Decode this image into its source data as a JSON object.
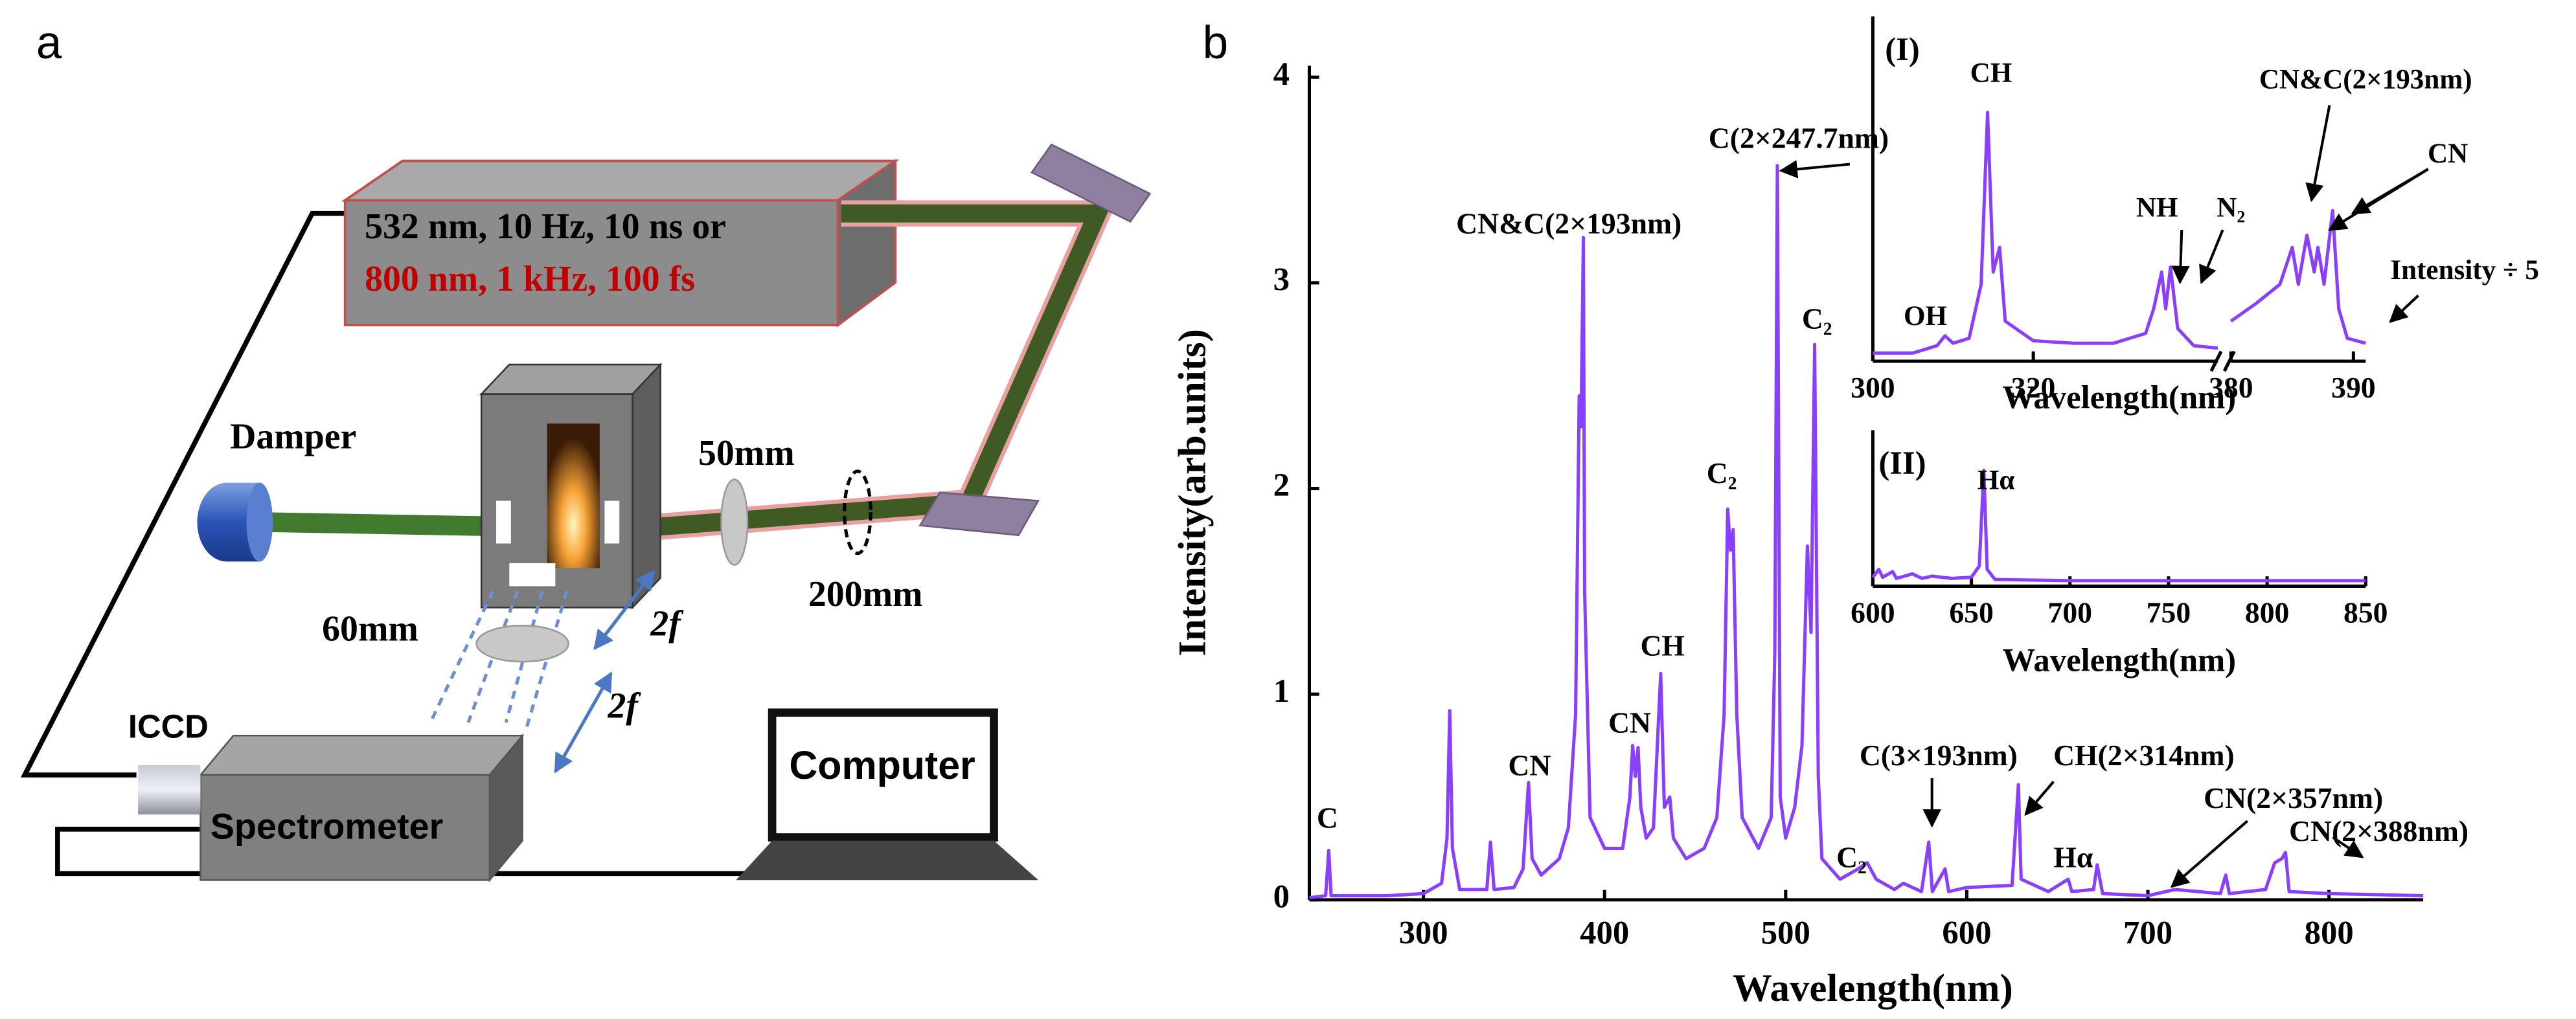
{
  "panel_a": {
    "label": "a",
    "laser_line_1": "532 nm, 10 Hz, 10 ns or",
    "laser_line_2": "800 nm, 1 kHz, 100 fs",
    "damper": "Damper",
    "lens_50": "50mm",
    "lens_200": "200mm",
    "lens_60": "60mm",
    "distance_1": "2f",
    "distance_2": "2f",
    "iccd": "ICCD",
    "spectrometer": "Spectrometer",
    "computer": "Computer"
  },
  "panel_b": {
    "label": "b"
  },
  "chart_data": [
    {
      "type": "line",
      "x_label": "Wavelength(nm)",
      "y_label": "Intensity(arb.units)",
      "x": [
        237,
        246,
        247.7,
        249,
        280,
        300,
        310,
        313,
        314.5,
        316,
        320,
        335,
        337,
        339,
        350,
        355,
        358,
        360,
        365,
        375,
        380,
        384,
        386,
        387,
        388.3,
        389,
        392,
        400,
        410,
        414,
        415.5,
        417,
        418.5,
        420,
        423,
        427,
        431,
        433,
        436,
        438,
        445,
        455,
        462,
        466,
        468,
        469.5,
        471,
        473,
        476,
        485,
        492,
        494,
        495.4,
        497,
        500,
        505,
        509,
        512,
        514,
        516,
        518,
        520,
        530,
        540,
        545,
        550,
        560,
        565,
        575,
        579,
        581,
        588,
        590,
        600,
        625,
        628.5,
        630,
        645,
        656,
        658,
        670,
        672,
        675,
        700,
        715,
        740,
        743,
        745,
        765,
        770,
        774,
        776,
        778,
        800,
        852
      ],
      "series": [
        {
          "color": "#8a3ffc",
          "values": [
            0.01,
            0.02,
            0.24,
            0.02,
            0.02,
            0.03,
            0.08,
            0.3,
            0.92,
            0.25,
            0.05,
            0.05,
            0.28,
            0.05,
            0.06,
            0.15,
            0.57,
            0.2,
            0.12,
            0.2,
            0.35,
            0.9,
            2.45,
            2.3,
            3.22,
            1.5,
            0.4,
            0.25,
            0.25,
            0.5,
            0.75,
            0.6,
            0.74,
            0.45,
            0.3,
            0.35,
            1.1,
            0.45,
            0.5,
            0.3,
            0.2,
            0.25,
            0.4,
            0.9,
            1.9,
            1.7,
            1.8,
            0.9,
            0.4,
            0.25,
            0.4,
            1.2,
            3.57,
            0.5,
            0.3,
            0.45,
            0.75,
            1.72,
            1.3,
            2.7,
            0.6,
            0.2,
            0.1,
            0.15,
            0.18,
            0.1,
            0.05,
            0.08,
            0.04,
            0.28,
            0.04,
            0.15,
            0.04,
            0.06,
            0.07,
            0.56,
            0.1,
            0.04,
            0.1,
            0.04,
            0.05,
            0.17,
            0.03,
            0.02,
            0.05,
            0.03,
            0.12,
            0.03,
            0.05,
            0.18,
            0.2,
            0.23,
            0.04,
            0.03,
            0.02
          ]
        }
      ],
      "xlim": [
        237,
        852
      ],
      "ylim": [
        0,
        4
      ],
      "xticks": [
        300,
        400,
        500,
        600,
        700,
        800
      ],
      "yticks": [
        0,
        1,
        2,
        3,
        4
      ],
      "annotations": [
        "C",
        "CN",
        "CN&C(2×193nm)",
        "CN",
        "CH",
        "C₂",
        "C(2×247.7nm)",
        "C₂",
        "C(3×193nm)",
        "C₂",
        "CH(2×314nm)",
        "Hα",
        "CN(2×357nm)",
        "CN(2×388nm)"
      ]
    },
    {
      "type": "line",
      "label": "(I)",
      "x_label": "Wavelength(nm)",
      "x": [
        300,
        305,
        308,
        309,
        310,
        312,
        313.5,
        314.3,
        315,
        315.8,
        316.5,
        320,
        325,
        330,
        334,
        335,
        336,
        336.5,
        337.1,
        338,
        340,
        343,
        380,
        382,
        384,
        385,
        385.5,
        386.2,
        386.8,
        387.1,
        387.6,
        388.3,
        388.8,
        389.5,
        391
      ],
      "series": [
        {
          "color": "#8a3ffc",
          "values": [
            0.02,
            0.02,
            0.05,
            0.09,
            0.06,
            0.08,
            0.3,
            1.0,
            0.35,
            0.45,
            0.15,
            0.07,
            0.06,
            0.06,
            0.1,
            0.2,
            0.35,
            0.2,
            0.37,
            0.12,
            0.05,
            0.04,
            0.15,
            0.22,
            0.3,
            0.45,
            0.3,
            0.5,
            0.35,
            0.45,
            0.3,
            0.6,
            0.2,
            0.08,
            0.06
          ]
        }
      ],
      "xlim": [
        [
          300,
          343
        ],
        [
          380,
          391
        ]
      ],
      "ylim": [
        0,
        1.05
      ],
      "xticks": [
        300,
        320,
        380,
        390
      ],
      "annotations": [
        "CH",
        "OH",
        "NH",
        "N₂",
        "CN&C(2×193nm)",
        "CN",
        "Intensity ÷ 5"
      ]
    },
    {
      "type": "line",
      "label": "(II)",
      "x_label": "Wavelength(nm)",
      "x": [
        600,
        603,
        605,
        610,
        612,
        620,
        625,
        630,
        640,
        650,
        654,
        656.3,
        658,
        662,
        700,
        750,
        800,
        850
      ],
      "series": [
        {
          "color": "#8a3ffc",
          "values": [
            0.05,
            0.12,
            0.05,
            0.1,
            0.04,
            0.08,
            0.04,
            0.06,
            0.04,
            0.05,
            0.15,
            1.0,
            0.12,
            0.03,
            0.02,
            0.02,
            0.02,
            0.02
          ]
        }
      ],
      "xlim": [
        600,
        850
      ],
      "ylim": [
        0,
        1.05
      ],
      "xticks": [
        600,
        650,
        700,
        750,
        800,
        850
      ],
      "annotations": [
        "Hα"
      ]
    }
  ]
}
